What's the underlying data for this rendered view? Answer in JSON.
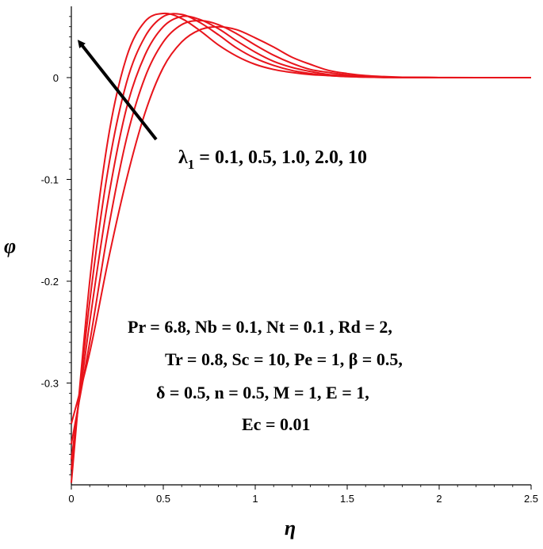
{
  "chart_data": {
    "type": "line",
    "xlabel": "η",
    "ylabel": "φ",
    "xlim": [
      0,
      2.5
    ],
    "ylim": [
      -0.4,
      0.07
    ],
    "x_ticks": [
      0,
      0.5,
      1,
      1.5,
      2,
      2.5
    ],
    "x_tick_labels": [
      "0",
      "0.5",
      "1",
      "1.5",
      "2",
      "2.5"
    ],
    "y_ticks": [
      -0.3,
      -0.2,
      -0.1,
      0
    ],
    "y_tick_labels": [
      "-0.3",
      "-0.2",
      "-0.1",
      "0"
    ],
    "grid": false,
    "color": "#e8141b",
    "param_label_main": "λ",
    "param_label_sub": "1",
    "param_label_values": " = 0.1, 0.5, 1.0, 2.0, 10",
    "param_lines": [
      "Pr = 6.8,  Nb = 0.1, Nt = 0.1 , Rd = 2,",
      "Tr = 0.8, Sc = 10,  Pe = 1,  β = 0.5,",
      "δ = 0.5,  n = 0.5, M = 1, E = 1,",
      "Ec = 0.01"
    ],
    "series": [
      {
        "x": [
          0,
          0.1,
          0.2,
          0.3,
          0.4,
          0.5,
          0.6,
          0.7,
          0.8,
          0.9,
          1.0,
          1.1,
          1.2,
          1.3,
          1.4,
          1.5,
          1.6,
          1.7,
          1.8,
          2.0,
          2.2,
          2.5
        ],
        "values": [
          -0.398,
          -0.2,
          -0.06,
          0.02,
          0.055,
          0.063,
          0.058,
          0.046,
          0.032,
          0.021,
          0.013,
          0.008,
          0.005,
          0.003,
          0.002,
          0.001,
          0.0005,
          0.0002,
          0.0001,
          0,
          0,
          0
        ]
      },
      {
        "x": [
          0,
          0.1,
          0.2,
          0.3,
          0.4,
          0.5,
          0.6,
          0.7,
          0.8,
          0.9,
          1.0,
          1.1,
          1.2,
          1.3,
          1.4,
          1.5,
          1.6,
          1.7,
          1.8,
          2.0,
          2.2,
          2.5
        ],
        "values": [
          -0.385,
          -0.22,
          -0.09,
          -0.005,
          0.04,
          0.06,
          0.062,
          0.054,
          0.042,
          0.029,
          0.019,
          0.012,
          0.007,
          0.004,
          0.002,
          0.001,
          0.0005,
          0.0002,
          0.0001,
          0,
          0,
          0
        ]
      },
      {
        "x": [
          0,
          0.1,
          0.2,
          0.3,
          0.4,
          0.5,
          0.6,
          0.7,
          0.8,
          0.9,
          1.0,
          1.1,
          1.2,
          1.3,
          1.4,
          1.5,
          1.6,
          1.7,
          1.8,
          2.0,
          2.2,
          2.5
        ],
        "values": [
          -0.375,
          -0.24,
          -0.12,
          -0.03,
          0.022,
          0.05,
          0.06,
          0.057,
          0.048,
          0.036,
          0.025,
          0.016,
          0.01,
          0.006,
          0.003,
          0.0015,
          0.0007,
          0.0003,
          0.0001,
          0,
          0,
          0
        ]
      },
      {
        "x": [
          0,
          0.1,
          0.2,
          0.3,
          0.4,
          0.5,
          0.6,
          0.7,
          0.8,
          0.9,
          1.0,
          1.1,
          1.2,
          1.3,
          1.4,
          1.5,
          1.6,
          1.7,
          1.8,
          2.0,
          2.2,
          2.5
        ],
        "values": [
          -0.36,
          -0.26,
          -0.15,
          -0.06,
          0.0,
          0.035,
          0.052,
          0.056,
          0.052,
          0.043,
          0.032,
          0.022,
          0.014,
          0.008,
          0.005,
          0.0025,
          0.001,
          0.0005,
          0.0002,
          0,
          0,
          0
        ]
      },
      {
        "x": [
          0,
          0.1,
          0.2,
          0.3,
          0.4,
          0.5,
          0.6,
          0.7,
          0.8,
          0.9,
          1.0,
          1.1,
          1.2,
          1.3,
          1.4,
          1.5,
          1.6,
          1.7,
          1.8,
          2.0,
          2.2,
          2.5
        ],
        "values": [
          -0.34,
          -0.27,
          -0.18,
          -0.1,
          -0.035,
          0.01,
          0.035,
          0.047,
          0.05,
          0.047,
          0.039,
          0.03,
          0.02,
          0.013,
          0.007,
          0.004,
          0.002,
          0.001,
          0.0004,
          0.0001,
          0,
          0
        ]
      }
    ]
  }
}
